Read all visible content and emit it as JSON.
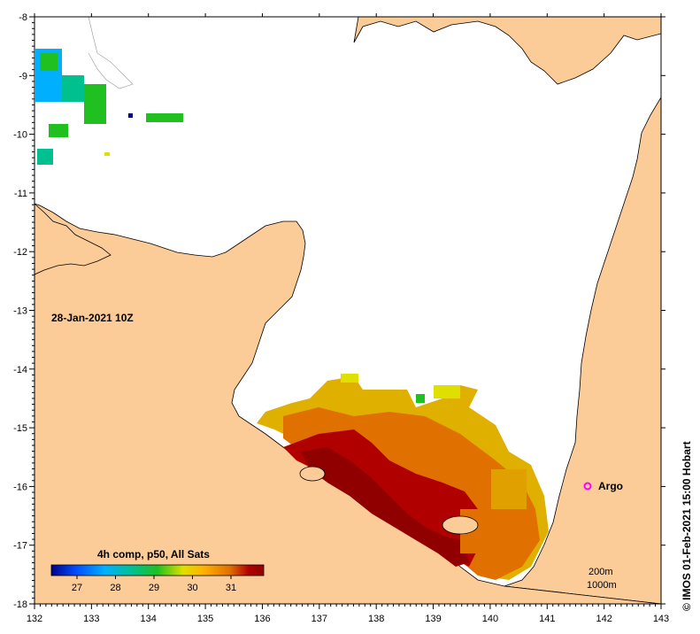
{
  "map": {
    "date_label": "28-Jan-2021 10Z",
    "credit": "© IMOS 01-Feb-2021 15:00 Hobart",
    "x_ticks": [
      "132",
      "133",
      "134",
      "135",
      "136",
      "137",
      "138",
      "139",
      "140",
      "141",
      "142",
      "143"
    ],
    "y_ticks": [
      "-8",
      "-9",
      "-10",
      "-11",
      "-12",
      "-13",
      "-14",
      "-15",
      "-16",
      "-17",
      "-18"
    ],
    "argo_label": "Argo",
    "contour_labels": [
      "200m",
      "1000m"
    ],
    "colors": {
      "land": "#fbcb98",
      "ocean": "#ffffff",
      "argo_marker": "#ff00ff"
    }
  },
  "colorbar": {
    "title": "4h comp, p50, All Sats",
    "ticks": [
      "27",
      "28",
      "29",
      "30",
      "31"
    ],
    "stops": [
      "#00008b",
      "#0050ff",
      "#00b0ff",
      "#00c090",
      "#20c020",
      "#e0e000",
      "#ffb000",
      "#e07000",
      "#b00000",
      "#900000"
    ]
  }
}
